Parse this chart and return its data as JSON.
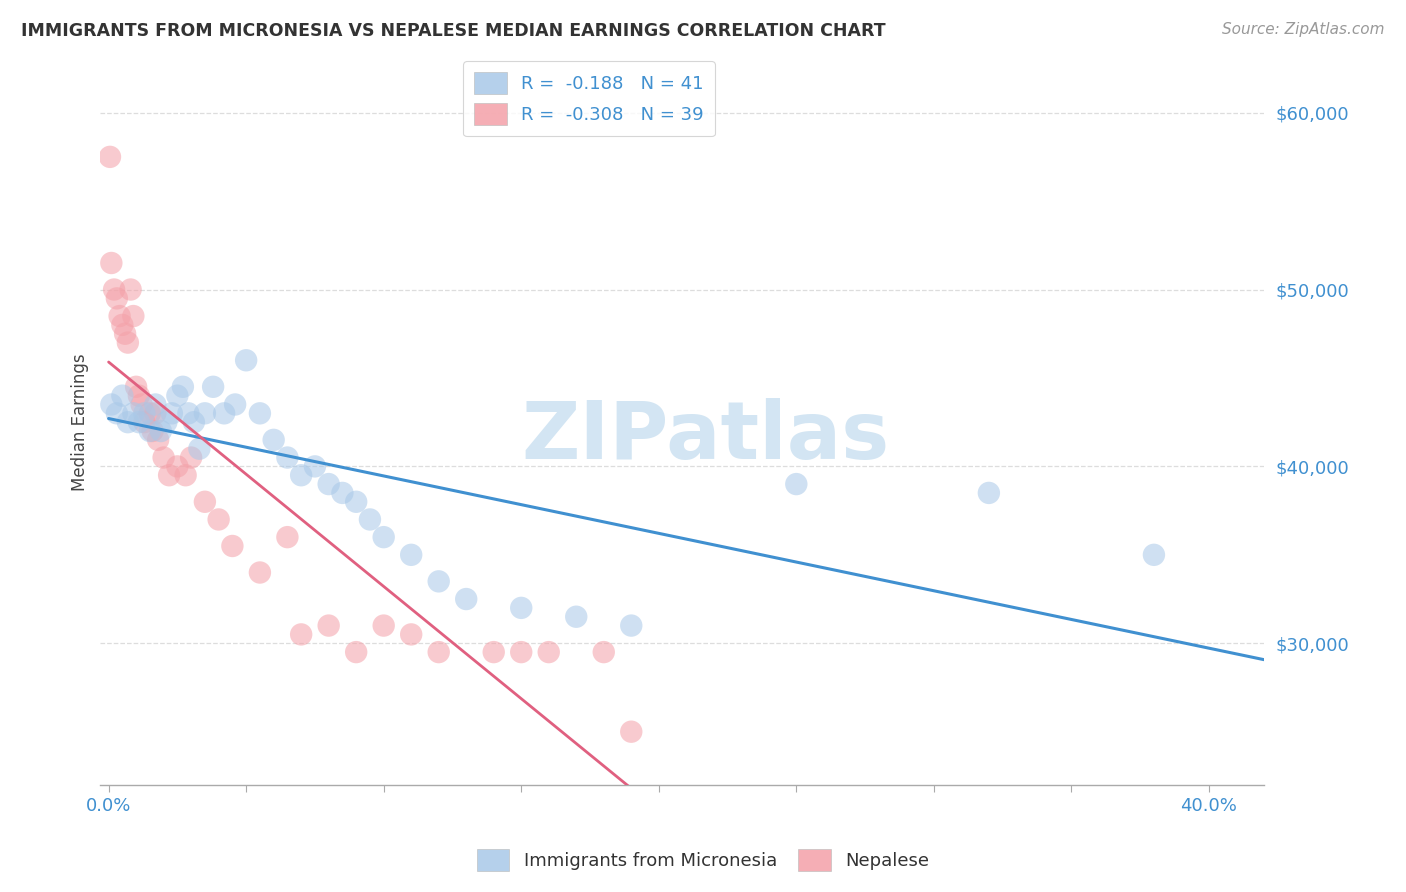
{
  "title": "IMMIGRANTS FROM MICRONESIA VS NEPALESE MEDIAN EARNINGS CORRELATION CHART",
  "source": "Source: ZipAtlas.com",
  "ylabel": "Median Earnings",
  "ylim": [
    22000,
    63000
  ],
  "xlim": [
    -0.003,
    0.42
  ],
  "yticks": [
    30000,
    40000,
    50000,
    60000
  ],
  "ytick_labels": [
    "$30,000",
    "$40,000",
    "$50,000",
    "$60,000"
  ],
  "legend_label1": "Immigrants from Micronesia",
  "legend_label2": "Nepalese",
  "blue_color": "#a8c8e8",
  "pink_color": "#f4a0a8",
  "blue_line_color": "#4090d0",
  "pink_line_color": "#e06080",
  "pink_dash_color": "#e8a0b0",
  "watermark_color": "#c8dff0",
  "blue_x": [
    0.001,
    0.003,
    0.005,
    0.007,
    0.009,
    0.011,
    0.013,
    0.015,
    0.017,
    0.019,
    0.021,
    0.023,
    0.025,
    0.027,
    0.029,
    0.031,
    0.033,
    0.035,
    0.038,
    0.042,
    0.046,
    0.05,
    0.055,
    0.06,
    0.065,
    0.07,
    0.075,
    0.08,
    0.085,
    0.09,
    0.095,
    0.1,
    0.11,
    0.12,
    0.13,
    0.15,
    0.17,
    0.19,
    0.25,
    0.32,
    0.38
  ],
  "blue_y": [
    43500,
    43000,
    44000,
    42500,
    43000,
    42500,
    43000,
    42000,
    43500,
    42000,
    42500,
    43000,
    44000,
    44500,
    43000,
    42500,
    41000,
    43000,
    44500,
    43000,
    43500,
    46000,
    43000,
    41500,
    40500,
    39500,
    40000,
    39000,
    38500,
    38000,
    37000,
    36000,
    35000,
    33500,
    32500,
    32000,
    31500,
    31000,
    39000,
    38500,
    35000
  ],
  "pink_x": [
    0.0005,
    0.001,
    0.002,
    0.003,
    0.004,
    0.005,
    0.006,
    0.007,
    0.008,
    0.009,
    0.01,
    0.011,
    0.012,
    0.013,
    0.015,
    0.016,
    0.017,
    0.018,
    0.02,
    0.022,
    0.025,
    0.028,
    0.03,
    0.035,
    0.04,
    0.045,
    0.055,
    0.065,
    0.07,
    0.08,
    0.09,
    0.1,
    0.11,
    0.12,
    0.14,
    0.15,
    0.16,
    0.18,
    0.19
  ],
  "pink_y": [
    57500,
    51500,
    50000,
    49500,
    48500,
    48000,
    47500,
    47000,
    50000,
    48500,
    44500,
    44000,
    43500,
    42500,
    43000,
    42000,
    43000,
    41500,
    40500,
    39500,
    40000,
    39500,
    40500,
    38000,
    37000,
    35500,
    34000,
    36000,
    30500,
    31000,
    29500,
    31000,
    30500,
    29500,
    29500,
    29500,
    29500,
    29500,
    25000
  ]
}
